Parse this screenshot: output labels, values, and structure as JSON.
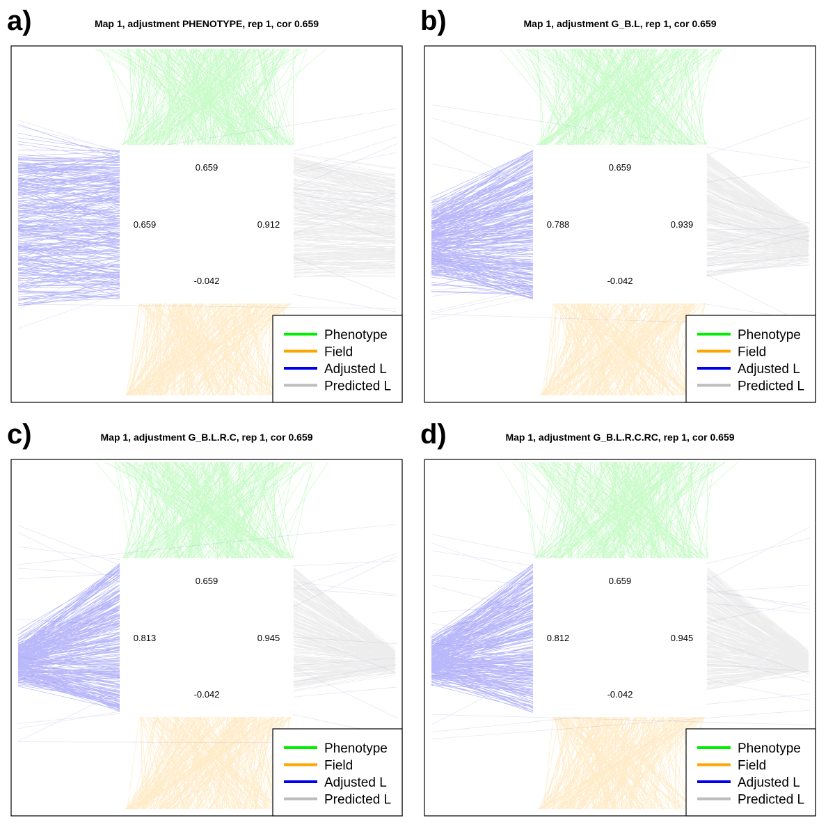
{
  "legend_labels": [
    "Phenotype",
    "Field",
    "Adjusted L",
    "Predicted L"
  ],
  "legend_colors": [
    "#00ee00",
    "#ffa500",
    "#0000ee",
    "#bebebe"
  ],
  "chart_data": [
    {
      "type": "other",
      "label": "a)",
      "title": "Map 1, adjustment PHENOTYPE, rep 1, cor 0.659",
      "top_value": "0.659",
      "left_value": "0.659",
      "right_value": "0.912",
      "bottom_value": "-0.042",
      "blue_fan": 0.05,
      "grey_fan": 0.25
    },
    {
      "type": "other",
      "label": "b)",
      "title": "Map 1, adjustment G_B.L, rep 1, cor 0.659",
      "top_value": "0.659",
      "left_value": "0.788",
      "right_value": "0.939",
      "bottom_value": "-0.042",
      "blue_fan": 0.6,
      "grey_fan": 0.78
    },
    {
      "type": "other",
      "label": "c)",
      "title": "Map 1, adjustment G_B.L.R.C, rep 1, cor 0.659",
      "top_value": "0.659",
      "left_value": "0.813",
      "right_value": "0.945",
      "bottom_value": "-0.042",
      "blue_fan": 0.82,
      "grey_fan": 0.9
    },
    {
      "type": "other",
      "label": "d)",
      "title": "Map 1, adjustment G_B.L.R.C.RC, rep 1, cor 0.659",
      "top_value": "0.659",
      "left_value": "0.812",
      "right_value": "0.945",
      "bottom_value": "-0.042",
      "blue_fan": 0.82,
      "grey_fan": 0.9
    }
  ]
}
